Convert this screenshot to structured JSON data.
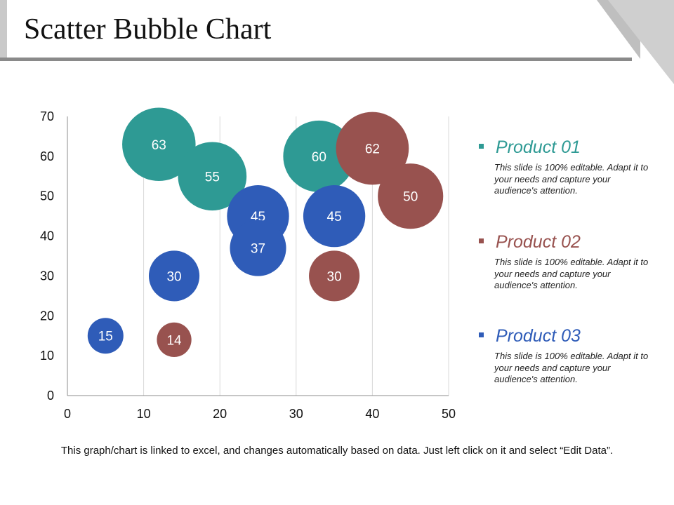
{
  "header": {
    "title": "Scatter Bubble Chart"
  },
  "chart_data": {
    "type": "scatter",
    "xlim": [
      0,
      50
    ],
    "ylim": [
      0,
      70
    ],
    "x_ticks": [
      0,
      10,
      20,
      30,
      40,
      50
    ],
    "y_ticks": [
      0,
      10,
      20,
      30,
      40,
      50,
      60,
      70
    ],
    "grid": "vertical",
    "series": [
      {
        "name": "Product 01",
        "color": "#2e9a94",
        "points": [
          {
            "x": 12,
            "y": 63,
            "size": 63
          },
          {
            "x": 19,
            "y": 55,
            "size": 55
          },
          {
            "x": 33,
            "y": 60,
            "size": 60
          }
        ]
      },
      {
        "name": "Product 02",
        "color": "#98524f",
        "points": [
          {
            "x": 40,
            "y": 62,
            "size": 62
          },
          {
            "x": 45,
            "y": 50,
            "size": 50
          },
          {
            "x": 35,
            "y": 30,
            "size": 30
          },
          {
            "x": 14,
            "y": 14,
            "size": 14
          }
        ]
      },
      {
        "name": "Product 03",
        "color": "#2f5cb8",
        "points": [
          {
            "x": 25,
            "y": 45,
            "size": 45
          },
          {
            "x": 35,
            "y": 45,
            "size": 45
          },
          {
            "x": 25,
            "y": 37,
            "size": 37
          },
          {
            "x": 14,
            "y": 30,
            "size": 30
          },
          {
            "x": 5,
            "y": 15,
            "size": 15
          }
        ]
      }
    ]
  },
  "legend": [
    {
      "title": "Product 01",
      "color": "#2e9a94",
      "description": "This slide is 100% editable. Adapt it to your needs and capture your audience's attention."
    },
    {
      "title": "Product 02",
      "color": "#98524f",
      "description": "This slide is 100% editable. Adapt it to your needs and capture your audience's attention."
    },
    {
      "title": "Product 03",
      "color": "#2f5cb8",
      "description": "This slide is 100% editable. Adapt it to your needs and capture your audience's attention."
    }
  ],
  "footnote": "This graph/chart is linked to excel, and changes automatically based on data. Just left click on it and select “Edit Data”."
}
